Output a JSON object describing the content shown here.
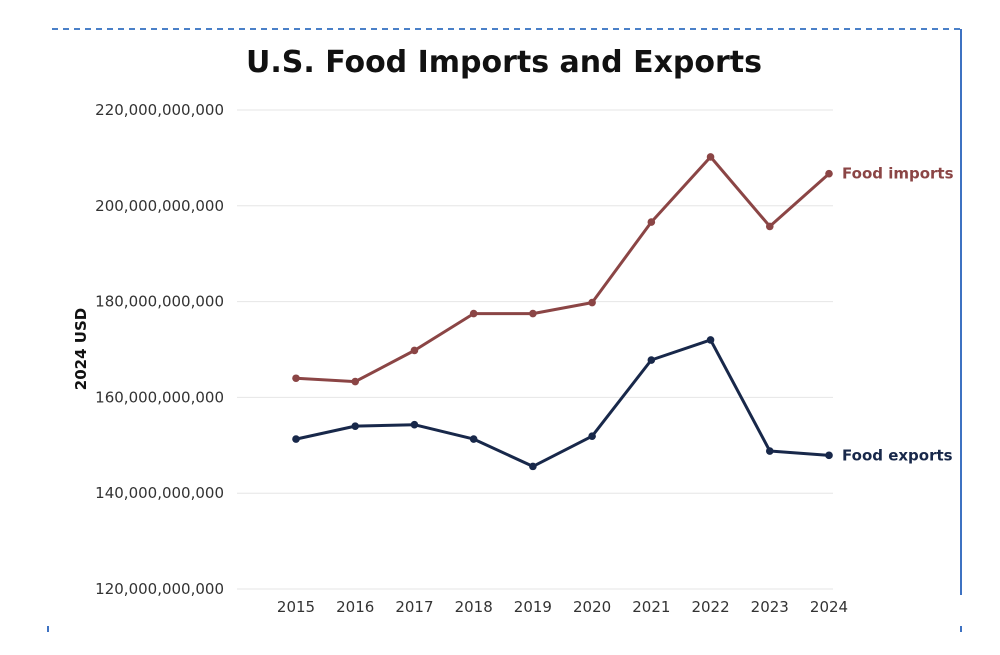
{
  "chart_data": {
    "type": "line",
    "title": "U.S. Food Imports and Exports",
    "xlabel": "",
    "ylabel": "2024 USD",
    "x": [
      "2015",
      "2016",
      "2017",
      "2018",
      "2019",
      "2020",
      "2021",
      "2022",
      "2023",
      "2024"
    ],
    "ylim": [
      120000000000,
      220000000000
    ],
    "yticks": [
      120000000000,
      140000000000,
      160000000000,
      180000000000,
      200000000000,
      220000000000
    ],
    "ytick_labels": [
      "120,000,000,000",
      "140,000,000,000",
      "160,000,000,000",
      "180,000,000,000",
      "200,000,000,000",
      "220,000,000,000"
    ],
    "grid": true,
    "legend": "direct labels at line ends",
    "series": [
      {
        "name": "Food imports",
        "color": "#8b4545",
        "values": [
          164000000000,
          163300000000,
          169800000000,
          177500000000,
          177500000000,
          179800000000,
          196600000000,
          210200000000,
          195700000000,
          206700000000
        ]
      },
      {
        "name": "Food exports",
        "color": "#18284a",
        "values": [
          151300000000,
          154000000000,
          154300000000,
          151300000000,
          145600000000,
          151900000000,
          167800000000,
          172000000000,
          148800000000,
          147900000000
        ]
      }
    ]
  }
}
